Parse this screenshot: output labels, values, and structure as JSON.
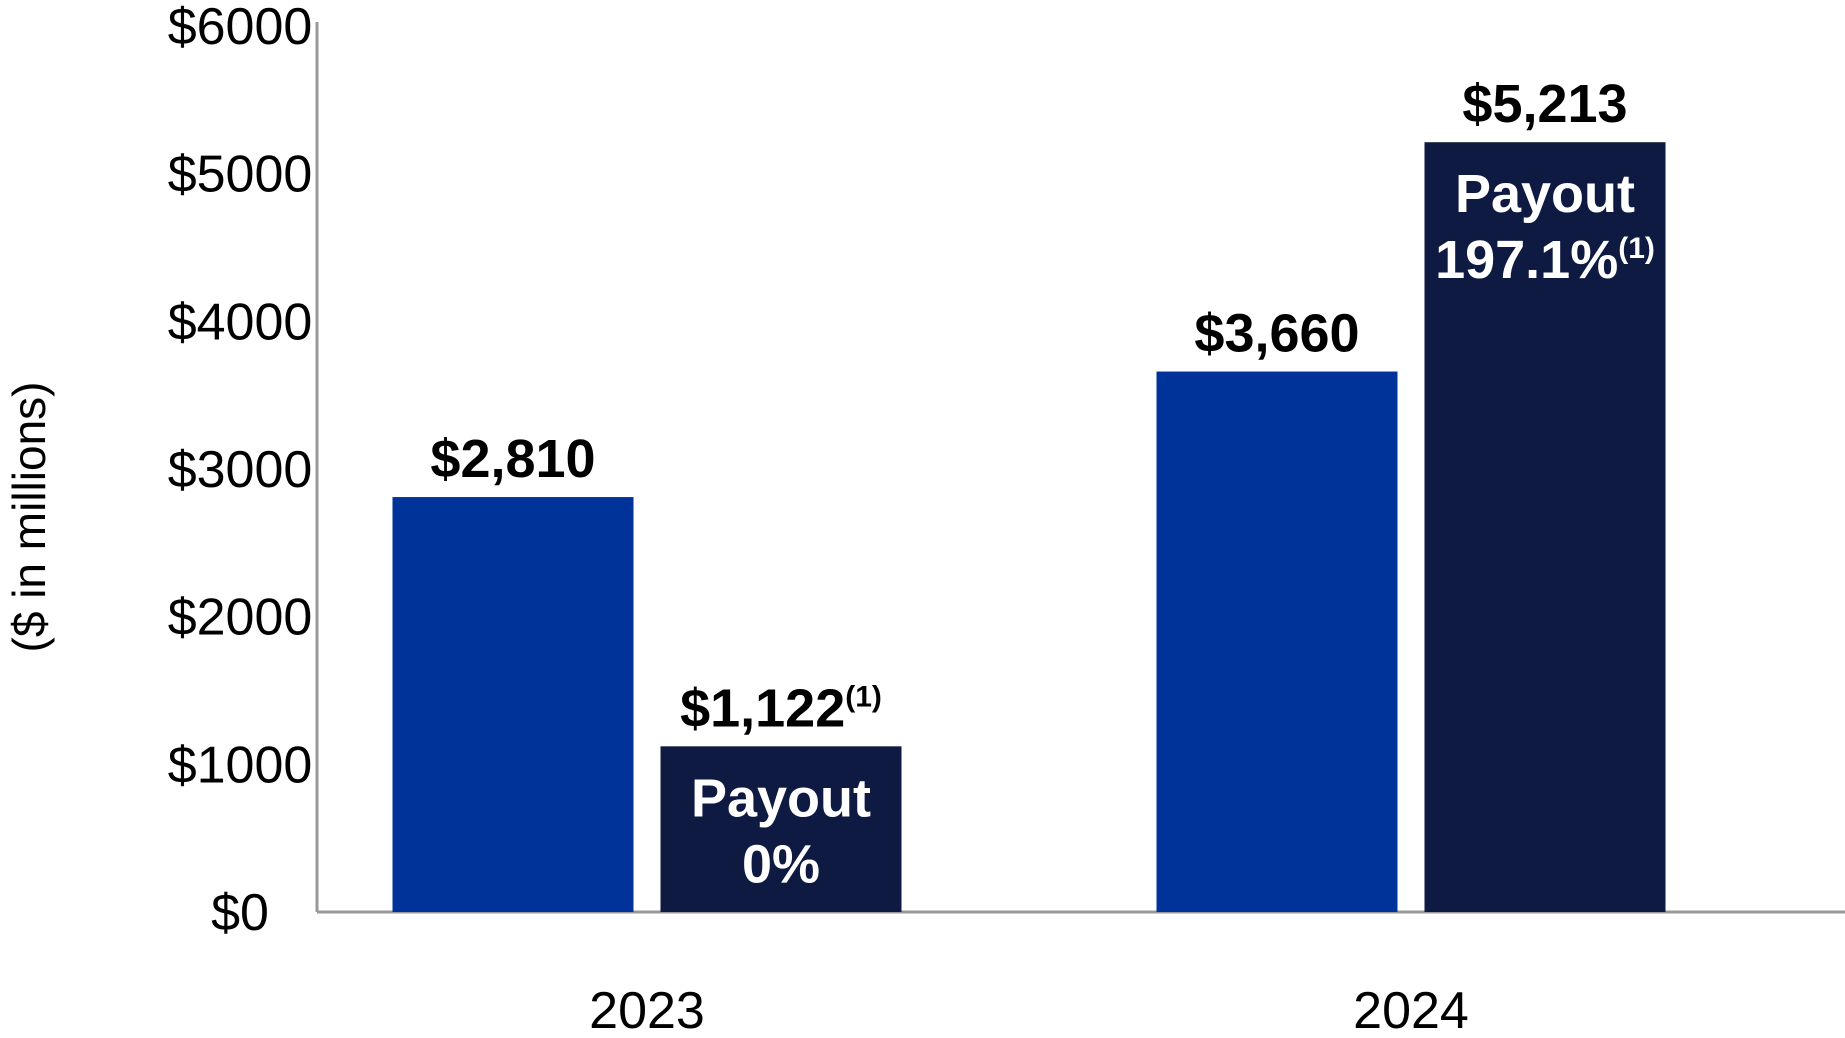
{
  "chart_data": {
    "type": "bar",
    "ylabel": "($ in millions)",
    "xlabel": "",
    "ylim": [
      0,
      6000
    ],
    "yticks": [
      0,
      1000,
      2000,
      3000,
      4000,
      5000,
      6000
    ],
    "ytick_labels": [
      "$0",
      "$1000",
      "$2000",
      "$3000",
      "$4000",
      "$5000",
      "$6000"
    ],
    "categories": [
      "2023",
      "2024"
    ],
    "grid": false,
    "series": [
      {
        "values": [
          2810,
          3660
        ],
        "color": "#003399",
        "labels": [
          "$2,810",
          "$3,660"
        ],
        "label_sups": [
          "",
          ""
        ],
        "inner_lines": [
          [],
          []
        ]
      },
      {
        "values": [
          1122,
          5213
        ],
        "color": "#0f1a42",
        "labels": [
          "$1,122",
          "$5,213"
        ],
        "label_sups": [
          "(1)",
          ""
        ],
        "inner_lines": [
          [
            {
              "text": "Payout",
              "sup": ""
            },
            {
              "text": "0%",
              "sup": ""
            }
          ],
          [
            {
              "text": "Payout",
              "sup": ""
            },
            {
              "text": "197.1%",
              "sup": "(1)"
            }
          ]
        ]
      }
    ],
    "axis_color": "#999999"
  }
}
